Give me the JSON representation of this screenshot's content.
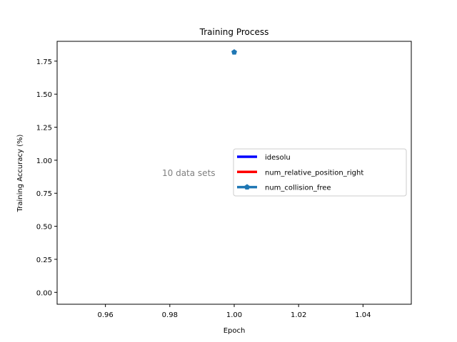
{
  "chart_data": {
    "type": "line",
    "title": "Training Process",
    "xlabel": "Epoch",
    "ylabel": "Training Accuracy (%)",
    "xlim": [
      0.945,
      1.055
    ],
    "ylim": [
      -0.09,
      1.9
    ],
    "xticks": [
      0.96,
      0.98,
      1.0,
      1.02,
      1.04
    ],
    "xtick_labels": [
      "0.96",
      "0.98",
      "1.00",
      "1.02",
      "1.04"
    ],
    "yticks": [
      0.0,
      0.25,
      0.5,
      0.75,
      1.0,
      1.25,
      1.5,
      1.75
    ],
    "ytick_labels": [
      "0.00",
      "0.25",
      "0.50",
      "0.75",
      "1.00",
      "1.25",
      "1.50",
      "1.75"
    ],
    "grid": false,
    "legend_position": "center-right",
    "annotation": "10 data sets",
    "series": [
      {
        "name": "idesolu",
        "color": "#0000ff",
        "marker": "none",
        "x": [],
        "y": []
      },
      {
        "name": "num_relative_position_right",
        "color": "#ff0000",
        "marker": "none",
        "x": [],
        "y": []
      },
      {
        "name": "num_collision_free",
        "color": "#1f77b4",
        "marker": "pentagon",
        "x": [
          1.0
        ],
        "y": [
          1.818
        ]
      }
    ]
  }
}
